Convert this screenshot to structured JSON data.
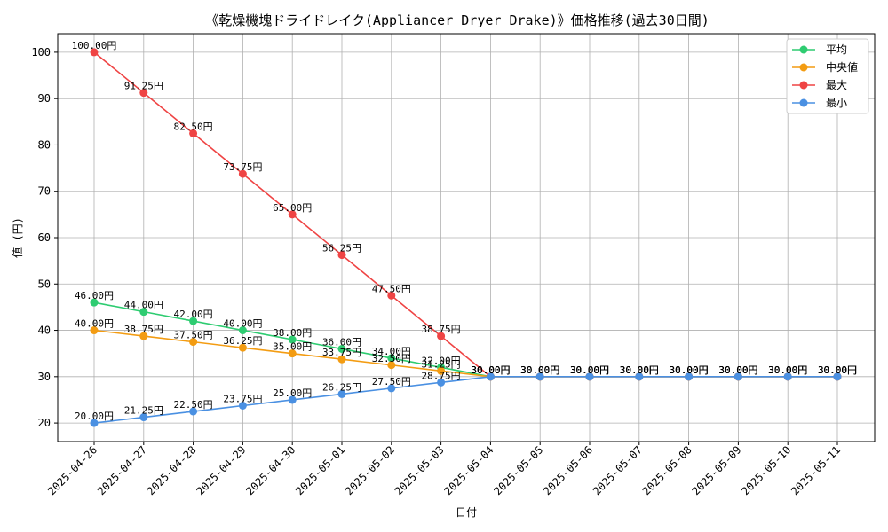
{
  "chart_data": {
    "type": "line",
    "title": "《乾燥機塊ドライドレイク(Appliancer Dryer Drake)》価格推移(過去30日間)",
    "xlabel": "日付",
    "ylabel": "値 (円)",
    "ylim": [
      16,
      104
    ],
    "yticks": [
      "20",
      "30",
      "40",
      "50",
      "60",
      "70",
      "80",
      "90",
      "100"
    ],
    "grid": true,
    "legend_position": "top-right",
    "value_suffix": "円",
    "categories": [
      "2025-04-26",
      "2025-04-27",
      "2025-04-28",
      "2025-04-29",
      "2025-04-30",
      "2025-05-01",
      "2025-05-02",
      "2025-05-03",
      "2025-05-04",
      "2025-05-05",
      "2025-05-06",
      "2025-05-07",
      "2025-05-08",
      "2025-05-09",
      "2025-05-10",
      "2025-05-11"
    ],
    "series": [
      {
        "name": "平均",
        "color": "#2ecc71",
        "values": [
          46.0,
          44.0,
          42.0,
          40.0,
          38.0,
          36.0,
          34.0,
          32.0,
          30.0,
          30.0,
          30.0,
          30.0,
          30.0,
          30.0,
          30.0,
          30.0
        ]
      },
      {
        "name": "中央値",
        "color": "#f39c12",
        "values": [
          40.0,
          38.75,
          37.5,
          36.25,
          35.0,
          33.75,
          32.5,
          31.25,
          30.0,
          30.0,
          30.0,
          30.0,
          30.0,
          30.0,
          30.0,
          30.0
        ]
      },
      {
        "name": "最大",
        "color": "#ef4444",
        "values": [
          100.0,
          91.25,
          82.5,
          73.75,
          65.0,
          56.25,
          47.5,
          38.75,
          30.0,
          30.0,
          30.0,
          30.0,
          30.0,
          30.0,
          30.0,
          30.0
        ]
      },
      {
        "name": "最小",
        "color": "#4a90e2",
        "values": [
          20.0,
          21.25,
          22.5,
          23.75,
          25.0,
          26.25,
          27.5,
          28.75,
          30.0,
          30.0,
          30.0,
          30.0,
          30.0,
          30.0,
          30.0,
          30.0
        ]
      }
    ]
  }
}
